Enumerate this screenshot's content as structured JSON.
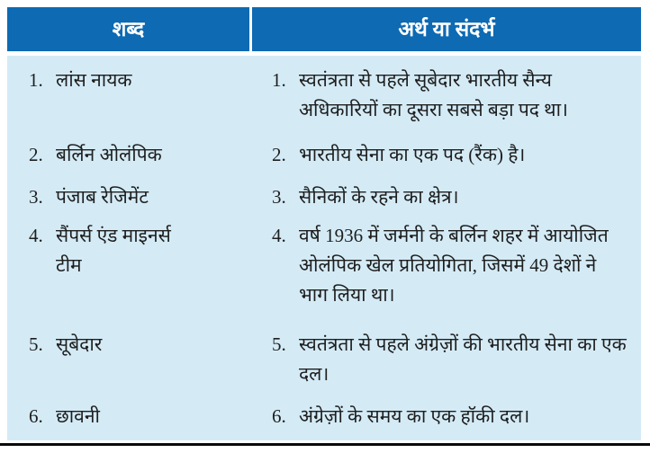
{
  "colors": {
    "header_bg": "#0d6ab3",
    "header_text": "#ffffff",
    "body_bg": "#d4ebf6",
    "text": "#1e1e1e",
    "bottom_rule": "#0a0a0a"
  },
  "table": {
    "headers": {
      "word": "शब्द",
      "meaning": "अर्थ या संदर्भ"
    },
    "rows": [
      {
        "num": "1.",
        "word": "लांस नायक",
        "meaning_num": "1.",
        "meaning": "स्वतंत्रता से पहले सूबेदार भारतीय सैन्य अधिकारियों का दूसरा सबसे बड़ा पद था।"
      },
      {
        "num": "2.",
        "word": "बर्लिन ओलंपिक",
        "meaning_num": "2.",
        "meaning": "भारतीय सेना का एक पद (रैंक) है।"
      },
      {
        "num": "3.",
        "word": "पंजाब रेजिमेंट",
        "meaning_num": "3.",
        "meaning": "सैनिकों के रहने का क्षेत्र।"
      },
      {
        "num": "4.",
        "word": "सैंपर्स एंड माइनर्स टीम",
        "meaning_num": "4.",
        "meaning": "वर्ष 1936 में जर्मनी के बर्लिन शहर में आयोजित ओलंपिक खेल प्रतियोगिता, जिसमें 49 देशों ने भाग लिया था।"
      },
      {
        "num": "5.",
        "word": "सूबेदार",
        "meaning_num": "5.",
        "meaning": "स्वतंत्रता से पहले अंग्रेज़ों की भारतीय सेना का एक दल।"
      },
      {
        "num": "6.",
        "word": "छावनी",
        "meaning_num": "6.",
        "meaning": "अंग्रेज़ों के समय का एक हॉकी दल।"
      }
    ]
  }
}
